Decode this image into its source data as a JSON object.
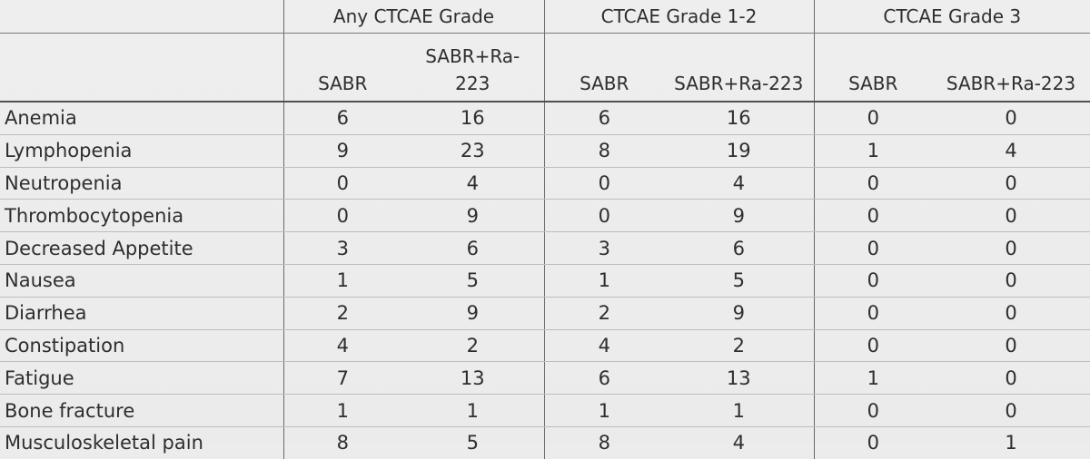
{
  "table": {
    "groups": [
      {
        "label": "Any CTCAE Grade"
      },
      {
        "label": "CTCAE Grade 1-2"
      },
      {
        "label": "CTCAE Grade 3"
      }
    ],
    "subheaders": {
      "g1_a": "SABR",
      "g1_b": "SABR+Ra-223",
      "g2_a": "SABR",
      "g2_b": "SABR+Ra-223",
      "g3_a": "SABR",
      "g3_b": "SABR+Ra-223"
    },
    "rows": [
      {
        "label": "Anemia",
        "values": [
          "6",
          "16",
          "6",
          "16",
          "0",
          "0"
        ]
      },
      {
        "label": "Lymphopenia",
        "values": [
          "9",
          "23",
          "8",
          "19",
          "1",
          "4"
        ]
      },
      {
        "label": "Neutropenia",
        "values": [
          "0",
          "4",
          "0",
          "4",
          "0",
          "0"
        ]
      },
      {
        "label": "Thrombocytopenia",
        "values": [
          "0",
          "9",
          "0",
          "9",
          "0",
          "0"
        ]
      },
      {
        "label": "Decreased Appetite",
        "values": [
          "3",
          "6",
          "3",
          "6",
          "0",
          "0"
        ]
      },
      {
        "label": "Nausea",
        "values": [
          "1",
          "5",
          "1",
          "5",
          "0",
          "0"
        ]
      },
      {
        "label": "Diarrhea",
        "values": [
          "2",
          "9",
          "2",
          "9",
          "0",
          "0"
        ]
      },
      {
        "label": "Constipation",
        "values": [
          "4",
          "2",
          "4",
          "2",
          "0",
          "0"
        ]
      },
      {
        "label": "Fatigue",
        "values": [
          "7",
          "13",
          "6",
          "13",
          "1",
          "0"
        ]
      },
      {
        "label": "Bone fracture",
        "values": [
          "1",
          "1",
          "1",
          "1",
          "0",
          "0"
        ]
      },
      {
        "label": "Musculoskeletal pain",
        "values": [
          "8",
          "5",
          "8",
          "4",
          "0",
          "1"
        ]
      }
    ]
  }
}
